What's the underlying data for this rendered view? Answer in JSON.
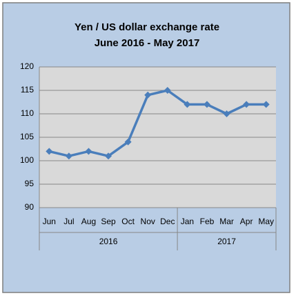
{
  "chart_data": {
    "type": "line",
    "title": "Yen / US dollar exchange rate",
    "subtitle": "June 2016 - May 2017",
    "categories": [
      "Jun",
      "Jul",
      "Aug",
      "Sep",
      "Oct",
      "Nov",
      "Dec",
      "Jan",
      "Feb",
      "Mar",
      "Apr",
      "May"
    ],
    "x_groups": [
      {
        "label": "2016",
        "count": 7
      },
      {
        "label": "2017",
        "count": 5
      }
    ],
    "values": [
      102,
      101,
      102,
      101,
      104,
      114,
      115,
      112,
      112,
      110,
      112,
      112
    ],
    "color": "#4a7ebb",
    "ylim": [
      90,
      120
    ],
    "yticks": [
      90,
      95,
      100,
      105,
      110,
      115,
      120
    ],
    "grid": true
  }
}
